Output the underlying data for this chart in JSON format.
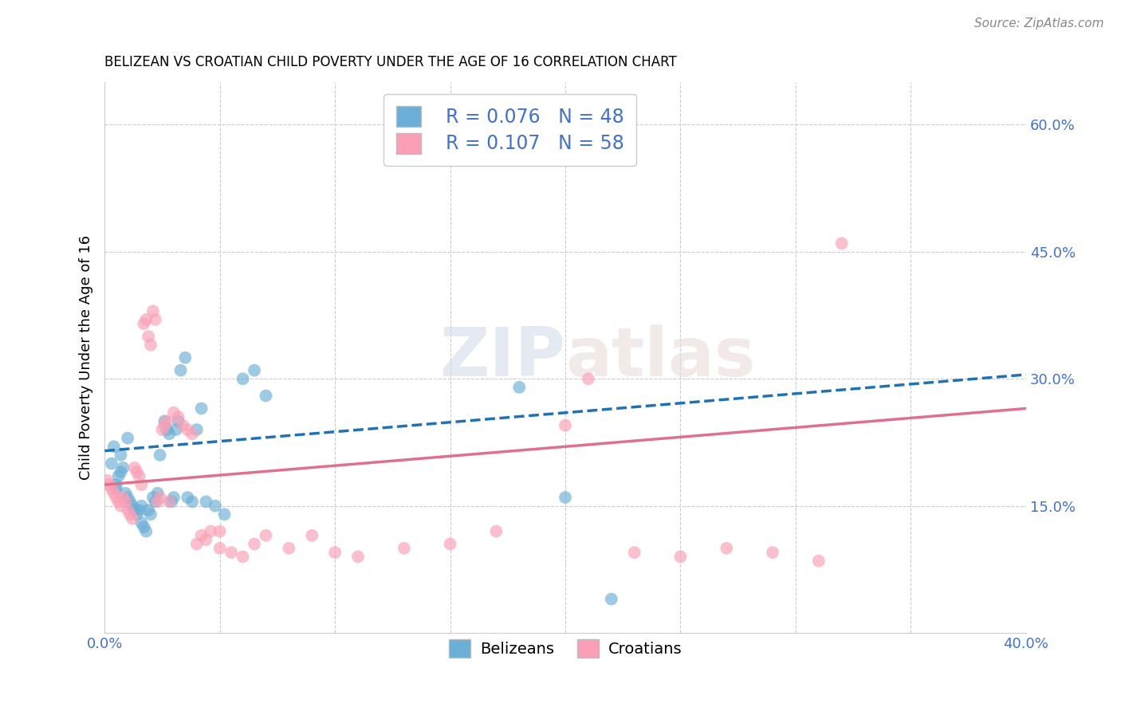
{
  "title": "BELIZEAN VS CROATIAN CHILD POVERTY UNDER THE AGE OF 16 CORRELATION CHART",
  "source": "Source: ZipAtlas.com",
  "ylabel": "Child Poverty Under the Age of 16",
  "xlim": [
    0.0,
    0.4
  ],
  "ylim": [
    0.0,
    0.65
  ],
  "xticks": [
    0.0,
    0.05,
    0.1,
    0.15,
    0.2,
    0.25,
    0.3,
    0.35,
    0.4
  ],
  "xticklabels": [
    "0.0%",
    "",
    "",
    "",
    "",
    "",
    "",
    "",
    "40.0%"
  ],
  "yticks": [
    0.0,
    0.15,
    0.3,
    0.45,
    0.6
  ],
  "yticklabels": [
    "",
    "15.0%",
    "30.0%",
    "45.0%",
    "60.0%"
  ],
  "grid_color": "#cccccc",
  "background_color": "#ffffff",
  "watermark_zip": "ZIP",
  "watermark_atlas": "atlas",
  "belizean_color": "#6baed6",
  "croatian_color": "#fa9fb5",
  "belizean_line_color": "#2171b5",
  "croatian_line_color": "#e07090",
  "legend_R1": "R = 0.076",
  "legend_N1": "N = 48",
  "legend_R2": "R = 0.107",
  "legend_N2": "N = 58",
  "label1": "Belizeans",
  "label2": "Croatians",
  "belizean_x": [
    0.003,
    0.004,
    0.005,
    0.005,
    0.006,
    0.007,
    0.007,
    0.008,
    0.009,
    0.01,
    0.011,
    0.012,
    0.013,
    0.014,
    0.015,
    0.016,
    0.016,
    0.017,
    0.018,
    0.019,
    0.02,
    0.021,
    0.022,
    0.023,
    0.024,
    0.026,
    0.027,
    0.028,
    0.029,
    0.03,
    0.031,
    0.032,
    0.033,
    0.035,
    0.036,
    0.038,
    0.04,
    0.042,
    0.044,
    0.048,
    0.052,
    0.06,
    0.065,
    0.07,
    0.18,
    0.2,
    0.22,
    0.01
  ],
  "belizean_y": [
    0.2,
    0.22,
    0.17,
    0.175,
    0.185,
    0.19,
    0.21,
    0.195,
    0.165,
    0.16,
    0.155,
    0.15,
    0.145,
    0.14,
    0.145,
    0.15,
    0.13,
    0.125,
    0.12,
    0.145,
    0.14,
    0.16,
    0.155,
    0.165,
    0.21,
    0.25,
    0.24,
    0.235,
    0.155,
    0.16,
    0.24,
    0.25,
    0.31,
    0.325,
    0.16,
    0.155,
    0.24,
    0.265,
    0.155,
    0.15,
    0.14,
    0.3,
    0.31,
    0.28,
    0.29,
    0.16,
    0.04,
    0.23
  ],
  "croatian_x": [
    0.001,
    0.002,
    0.003,
    0.004,
    0.005,
    0.006,
    0.007,
    0.008,
    0.009,
    0.01,
    0.011,
    0.012,
    0.013,
    0.014,
    0.015,
    0.016,
    0.017,
    0.018,
    0.019,
    0.02,
    0.021,
    0.022,
    0.023,
    0.024,
    0.025,
    0.026,
    0.027,
    0.028,
    0.03,
    0.032,
    0.034,
    0.036,
    0.038,
    0.04,
    0.042,
    0.044,
    0.046,
    0.05,
    0.055,
    0.06,
    0.065,
    0.07,
    0.08,
    0.09,
    0.1,
    0.11,
    0.13,
    0.15,
    0.17,
    0.2,
    0.21,
    0.23,
    0.25,
    0.27,
    0.29,
    0.31,
    0.32,
    0.05
  ],
  "croatian_y": [
    0.18,
    0.175,
    0.17,
    0.165,
    0.16,
    0.155,
    0.15,
    0.16,
    0.155,
    0.145,
    0.14,
    0.135,
    0.195,
    0.19,
    0.185,
    0.175,
    0.365,
    0.37,
    0.35,
    0.34,
    0.38,
    0.37,
    0.155,
    0.16,
    0.24,
    0.245,
    0.25,
    0.155,
    0.26,
    0.255,
    0.245,
    0.24,
    0.235,
    0.105,
    0.115,
    0.11,
    0.12,
    0.1,
    0.095,
    0.09,
    0.105,
    0.115,
    0.1,
    0.115,
    0.095,
    0.09,
    0.1,
    0.105,
    0.12,
    0.245,
    0.3,
    0.095,
    0.09,
    0.1,
    0.095,
    0.085,
    0.46,
    0.12
  ],
  "belizean_trend_x": [
    0.0,
    0.4
  ],
  "belizean_trend_y": [
    0.215,
    0.305
  ],
  "croatian_trend_x": [
    0.0,
    0.4
  ],
  "croatian_trend_y": [
    0.175,
    0.265
  ],
  "axis_tick_color": "#4472c4",
  "legend_text_color": "#4472c4"
}
